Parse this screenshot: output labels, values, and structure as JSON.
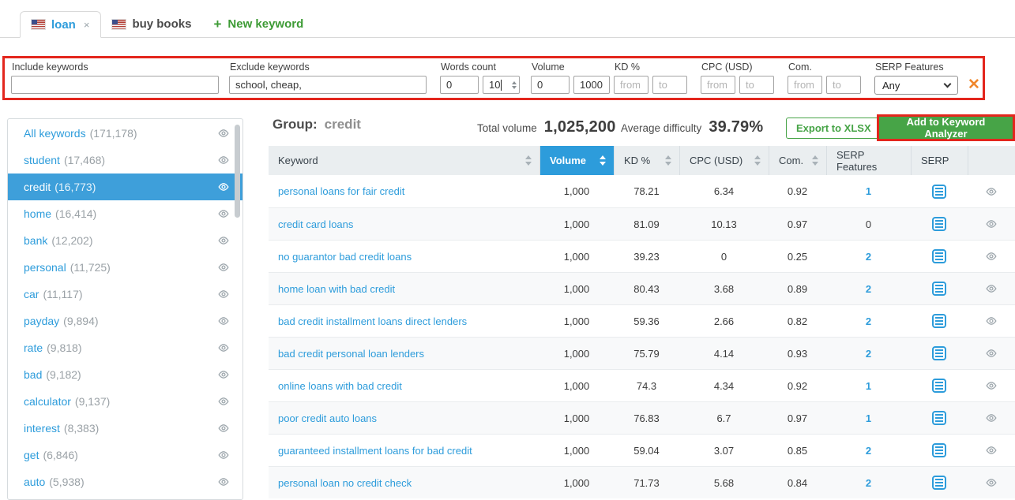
{
  "colors": {
    "accent_blue": "#2D9CDB",
    "green": "#47A447",
    "annotation_red": "#E3261D",
    "orange": "#F0872C",
    "selected_sidebar_blue": "#3E9FDA"
  },
  "tabs": {
    "loan": {
      "label": "loan",
      "flag": "us-flag",
      "close_icon": "×"
    },
    "buy_books": {
      "label": "buy books",
      "flag": "us-flag"
    },
    "new_keyword": {
      "plus": "+",
      "label": "New keyword"
    }
  },
  "filters": {
    "include": {
      "label": "Include keywords",
      "value": ""
    },
    "exclude": {
      "label": "Exclude keywords",
      "value": "school, cheap,"
    },
    "words_count": {
      "label": "Words count",
      "from": "0",
      "to": "10"
    },
    "volume": {
      "label": "Volume",
      "from": "0",
      "to": "1000"
    },
    "kd": {
      "label": "KD %",
      "from_placeholder": "from",
      "to_placeholder": "to"
    },
    "cpc": {
      "label": "CPC (USD)",
      "from_placeholder": "from",
      "to_placeholder": "to"
    },
    "com": {
      "label": "Com.",
      "from_placeholder": "from",
      "to_placeholder": "to"
    },
    "serp_features": {
      "label": "SERP Features",
      "value": "Any"
    },
    "clear": "✕"
  },
  "sidebar": {
    "items": [
      {
        "label": "All keywords",
        "count": "(171,178)",
        "selected": false
      },
      {
        "label": "student",
        "count": "(17,468)",
        "selected": false
      },
      {
        "label": "credit",
        "count": "(16,773)",
        "selected": true
      },
      {
        "label": "home",
        "count": "(16,414)",
        "selected": false
      },
      {
        "label": "bank",
        "count": "(12,202)",
        "selected": false
      },
      {
        "label": "personal",
        "count": "(11,725)",
        "selected": false
      },
      {
        "label": "car",
        "count": "(11,117)",
        "selected": false
      },
      {
        "label": "payday",
        "count": "(9,894)",
        "selected": false
      },
      {
        "label": "rate",
        "count": "(9,818)",
        "selected": false
      },
      {
        "label": "bad",
        "count": "(9,182)",
        "selected": false
      },
      {
        "label": "calculator",
        "count": "(9,137)",
        "selected": false
      },
      {
        "label": "interest",
        "count": "(8,383)",
        "selected": false
      },
      {
        "label": "get",
        "count": "(6,846)",
        "selected": false
      },
      {
        "label": "auto",
        "count": "(5,938)",
        "selected": false
      }
    ]
  },
  "main": {
    "group_label": "Group:",
    "group_name": "credit",
    "total_volume_label": "Total volume",
    "total_volume": "1,025,200",
    "avg_difficulty_label": "Average difficulty",
    "avg_difficulty": "39.79%",
    "export_button": "Export to XLSX",
    "add_button": "Add to Keyword Analyzer",
    "table": {
      "columns": [
        {
          "label": "Keyword"
        },
        {
          "label": "Volume"
        },
        {
          "label": "KD %"
        },
        {
          "label": "CPC (USD)"
        },
        {
          "label": "Com."
        },
        {
          "label": "SERP Features"
        },
        {
          "label": "SERP"
        },
        {
          "label": ""
        }
      ],
      "rows": [
        {
          "keyword": "personal loans for fair credit",
          "volume": "1,000",
          "kd": "78.21",
          "cpc": "6.34",
          "com": "0.92",
          "serp_features": "1"
        },
        {
          "keyword": "credit card loans",
          "volume": "1,000",
          "kd": "81.09",
          "cpc": "10.13",
          "com": "0.97",
          "serp_features": "0"
        },
        {
          "keyword": "no guarantor bad credit loans",
          "volume": "1,000",
          "kd": "39.23",
          "cpc": "0",
          "com": "0.25",
          "serp_features": "2"
        },
        {
          "keyword": "home loan with bad credit",
          "volume": "1,000",
          "kd": "80.43",
          "cpc": "3.68",
          "com": "0.89",
          "serp_features": "2"
        },
        {
          "keyword": "bad credit installment loans direct lenders",
          "volume": "1,000",
          "kd": "59.36",
          "cpc": "2.66",
          "com": "0.82",
          "serp_features": "2"
        },
        {
          "keyword": "bad credit personal loan lenders",
          "volume": "1,000",
          "kd": "75.79",
          "cpc": "4.14",
          "com": "0.93",
          "serp_features": "2"
        },
        {
          "keyword": "online loans with bad credit",
          "volume": "1,000",
          "kd": "74.3",
          "cpc": "4.34",
          "com": "0.92",
          "serp_features": "1"
        },
        {
          "keyword": "poor credit auto loans",
          "volume": "1,000",
          "kd": "76.83",
          "cpc": "6.7",
          "com": "0.97",
          "serp_features": "1"
        },
        {
          "keyword": "guaranteed installment loans for bad credit",
          "volume": "1,000",
          "kd": "59.04",
          "cpc": "3.07",
          "com": "0.85",
          "serp_features": "2"
        },
        {
          "keyword": "personal loan no credit check",
          "volume": "1,000",
          "kd": "71.73",
          "cpc": "5.68",
          "com": "0.84",
          "serp_features": "2"
        }
      ]
    }
  }
}
